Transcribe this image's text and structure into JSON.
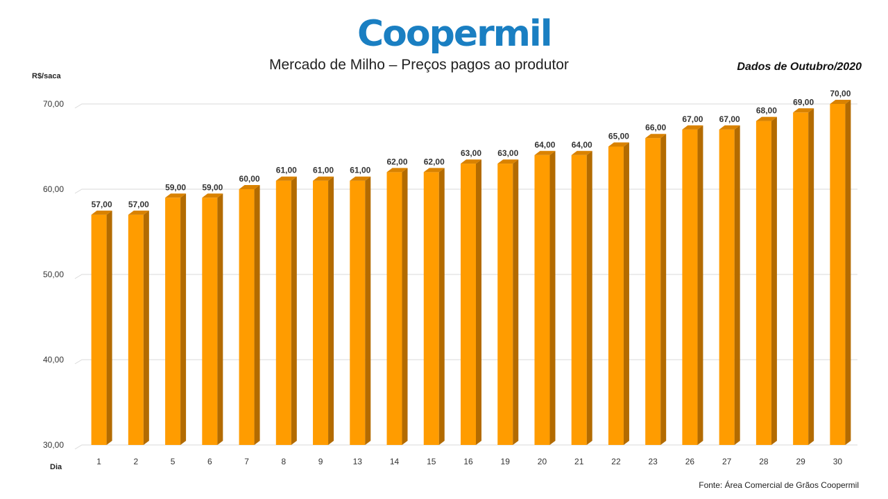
{
  "brand": {
    "logo_text": "Coopermil",
    "logo_color": "#1a7fc2"
  },
  "header": {
    "title": "Mercado de Milho – Preços pagos ao produtor",
    "period": "Dados de Outubro/2020"
  },
  "footer": {
    "source": "Fonte:  Área Comercial de Grãos Coopermil"
  },
  "chart_data": {
    "type": "bar",
    "title": "Mercado de Milho – Preços pagos ao produtor",
    "xlabel": "Dia",
    "ylabel": "R$/saca",
    "ylim": [
      30,
      70
    ],
    "yticks": [
      "30,00",
      "40,00",
      "50,00",
      "60,00",
      "70,00"
    ],
    "grid": true,
    "legend": "none",
    "bar_color": "#ff9c00",
    "categories": [
      "1",
      "2",
      "5",
      "6",
      "7",
      "8",
      "9",
      "13",
      "14",
      "15",
      "16",
      "19",
      "20",
      "21",
      "22",
      "23",
      "26",
      "27",
      "28",
      "29",
      "30"
    ],
    "values": [
      57,
      57,
      59,
      59,
      60,
      61,
      61,
      61,
      62,
      62,
      63,
      63,
      64,
      64,
      65,
      66,
      67,
      67,
      68,
      69,
      70
    ],
    "data_labels": [
      "57,00",
      "57,00",
      "59,00",
      "59,00",
      "60,00",
      "61,00",
      "61,00",
      "61,00",
      "62,00",
      "62,00",
      "63,00",
      "63,00",
      "64,00",
      "64,00",
      "65,00",
      "66,00",
      "67,00",
      "67,00",
      "68,00",
      "69,00",
      "70,00"
    ]
  }
}
